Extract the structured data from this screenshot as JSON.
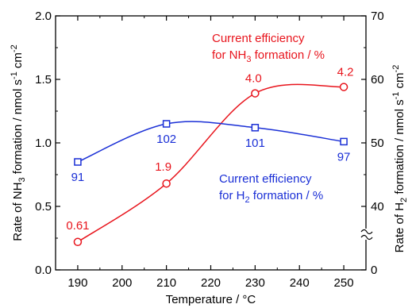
{
  "chart_data": {
    "type": "line",
    "x": [
      190,
      210,
      230,
      250
    ],
    "xlabel": "Temperature / °C",
    "xlim": [
      185,
      255
    ],
    "xticks": [
      "190",
      "200",
      "210",
      "220",
      "230",
      "240",
      "250"
    ],
    "ylabel_left": {
      "pre": "Rate of NH",
      "sub": "3",
      "mid": " formation / nmol s",
      "sup1": "-1",
      "mid2": " cm",
      "sup2": "-2"
    },
    "ylabel_right": {
      "pre": "Rate of H",
      "sub": "2",
      "mid": " formation / nmol s",
      "sup1": "-1",
      "mid2": " cm",
      "sup2": "-2"
    },
    "ylim_left": [
      0,
      2.0
    ],
    "yticks_left": [
      "0.0",
      "0.5",
      "1.0",
      "1.5",
      "2.0"
    ],
    "ylim_right": [
      30,
      70
    ],
    "yticks_right": [
      "0",
      "40",
      "50",
      "60",
      "70"
    ],
    "right_axis_break": true,
    "grid": false,
    "series": [
      {
        "axis": "left",
        "color": "#e8141c",
        "marker": "circle",
        "values": [
          0.22,
          0.68,
          1.39,
          1.44
        ],
        "point_labels": [
          "0.61",
          "1.9",
          "4.0",
          "4.2"
        ]
      },
      {
        "axis": "left",
        "color": "#1a2fd6",
        "marker": "square",
        "values": [
          0.85,
          1.15,
          1.12,
          1.01
        ],
        "point_labels": [
          "91",
          "102",
          "101",
          "97"
        ]
      }
    ],
    "annotations": {
      "red_line1": "Current efficiency",
      "red_line2": {
        "pre": "for NH",
        "sub": "3",
        "post": " formation / %"
      },
      "blue_line1": "Current efficiency",
      "blue_line2": {
        "pre": "for H",
        "sub": "2",
        "post": " formation / %"
      }
    }
  }
}
